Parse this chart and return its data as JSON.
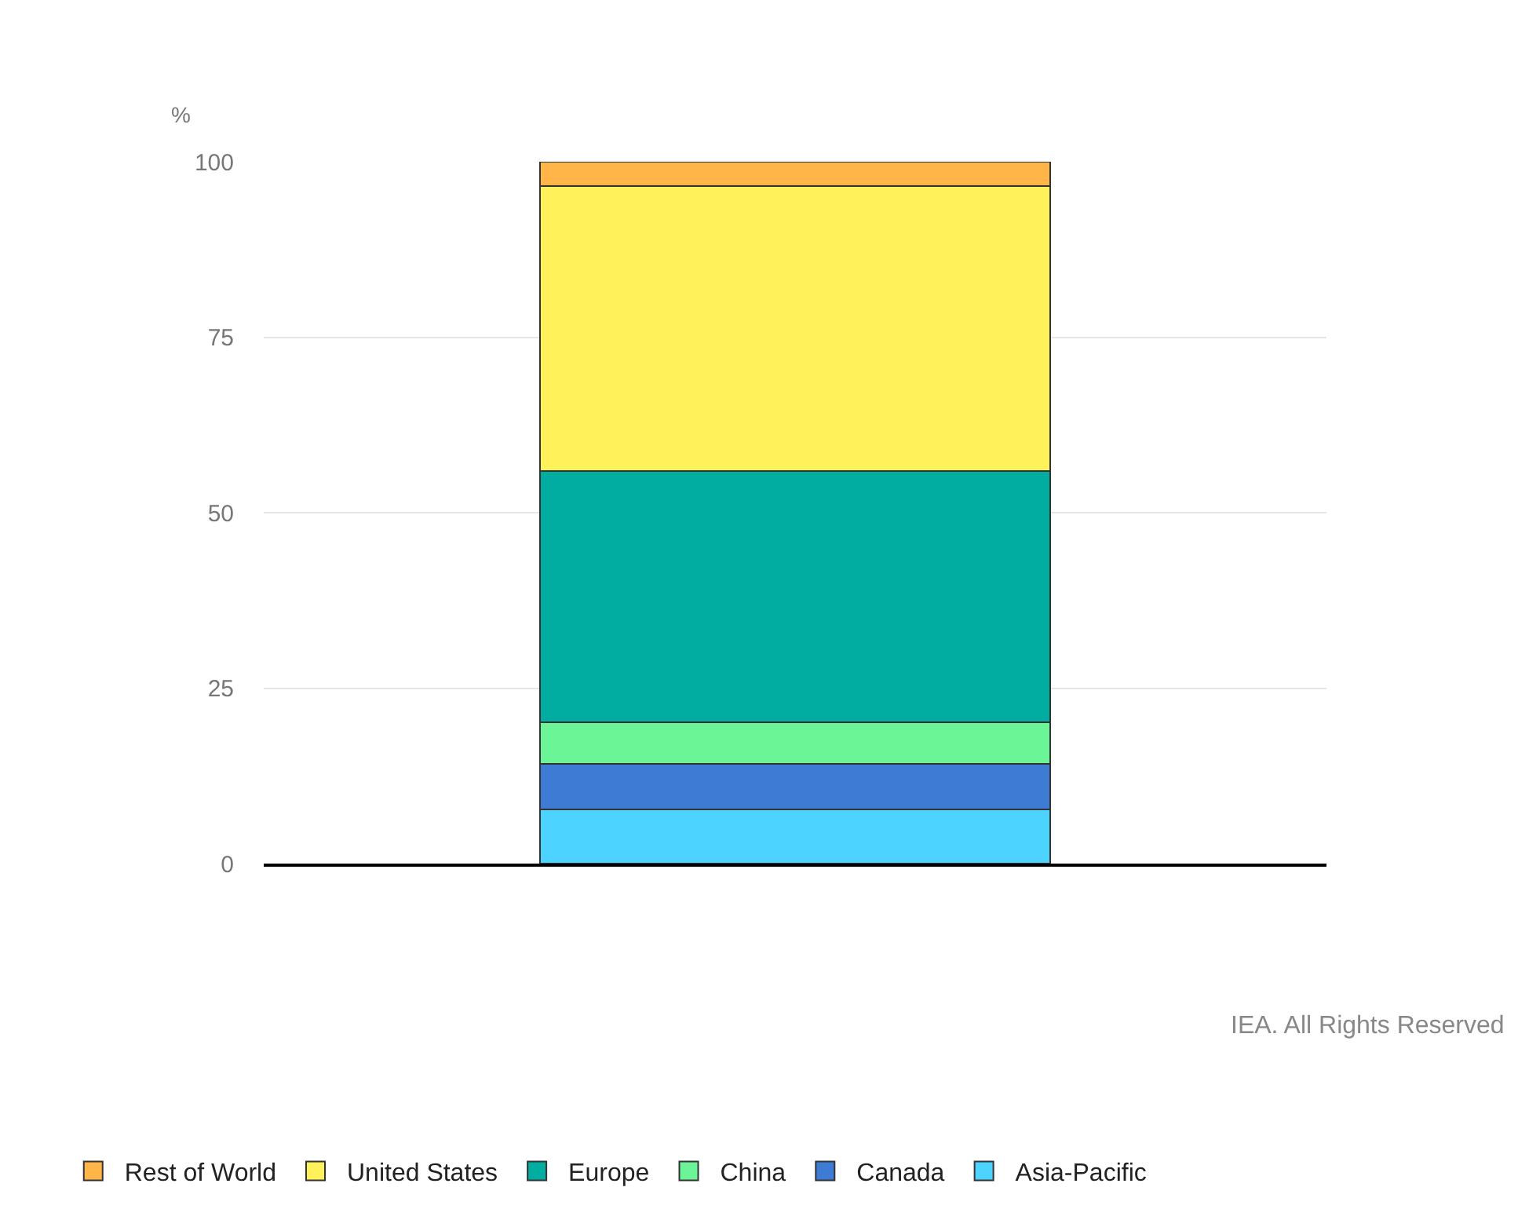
{
  "chart_data": {
    "type": "bar",
    "stacked": true,
    "ylabel": "%",
    "categories": [
      null
    ],
    "series": [
      {
        "name": "Asia-Pacific",
        "color": "#4dd3ff",
        "values": [
          7.7
        ]
      },
      {
        "name": "Canada",
        "color": "#3e7bd4",
        "values": [
          6.5
        ]
      },
      {
        "name": "China",
        "color": "#6cf596",
        "values": [
          5.9
        ]
      },
      {
        "name": "Europe",
        "color": "#00ada0",
        "values": [
          35.8
        ]
      },
      {
        "name": "United States",
        "color": "#fff15a",
        "values": [
          40.6
        ]
      },
      {
        "name": "Rest of World",
        "color": "#ffb548",
        "values": [
          3.5
        ]
      }
    ],
    "ylim": [
      0,
      100
    ],
    "yticks": [
      0,
      25,
      50,
      75,
      100
    ],
    "grid": "y",
    "legend": "bottom",
    "annotations": [
      "IEA. All Rights Reserved"
    ]
  }
}
